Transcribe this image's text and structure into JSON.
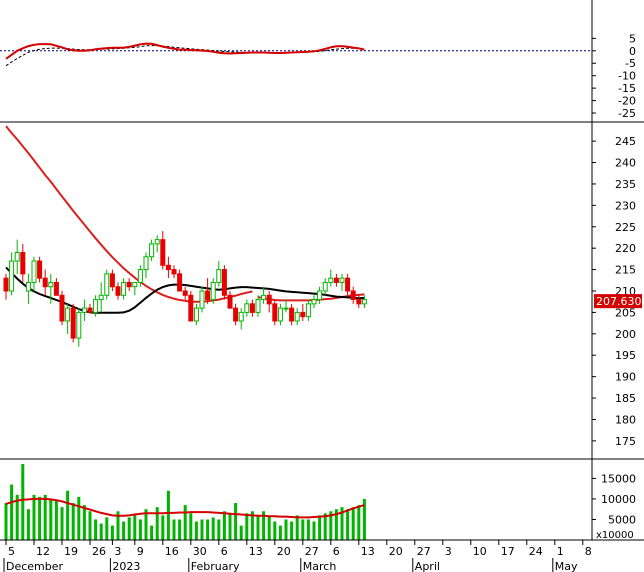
{
  "colors": {
    "background": "#ffffff",
    "panel_border": "#000000",
    "grid": "#ffffff",
    "osc_line": "#d40000",
    "osc_signal": "#000000",
    "zero_line": "#000080",
    "bull_fill": "#00b400",
    "bear_fill": "#e60000",
    "ma_red": "#dc1e1e",
    "ma_black": "#000000",
    "volume_bar": "#00b400",
    "volume_ma": "#d40000",
    "price_tag_bg": "#d40000",
    "price_tag_text": "#ffffff"
  },
  "chart_data": [
    {
      "type": "line",
      "panel": "oscillator",
      "ylim": [
        -27,
        18
      ],
      "yticks": [
        "5",
        "0",
        "-5",
        "-10",
        "-15",
        "-20",
        "-25"
      ],
      "ytick_values": [
        5,
        0,
        -5,
        -10,
        -15,
        -20,
        -25
      ],
      "series": [
        {
          "values": [
            -3.2,
            -1.6,
            0.0,
            1.0,
            1.9,
            2.4,
            2.7,
            2.7,
            2.6,
            2.0,
            1.4,
            0.6,
            0.2,
            0.0,
            0.0,
            0.2,
            0.6,
            0.9,
            1.1,
            1.2,
            1.2,
            1.3,
            1.6,
            2.1,
            2.6,
            2.9,
            2.8,
            2.3,
            1.7,
            1.2,
            0.8,
            0.5,
            0.4,
            0.3,
            0.2,
            0.1,
            -0.1,
            -0.4,
            -0.8,
            -1.0,
            -1.1,
            -1.0,
            -0.9,
            -0.8,
            -0.7,
            -0.7,
            -0.7,
            -0.8,
            -0.9,
            -0.9,
            -0.8,
            -0.7,
            -0.6,
            -0.5,
            -0.4,
            -0.2,
            0.2,
            0.8,
            1.4,
            1.8,
            1.9,
            1.6,
            1.3,
            1.0,
            0.5
          ]
        },
        {
          "values": [
            -6.0,
            -4.5,
            -3.1,
            -1.8,
            -0.6,
            0.1,
            0.6,
            0.9,
            1.1,
            1.1,
            1.0,
            0.9,
            0.7,
            0.5,
            0.4,
            0.4,
            0.5,
            0.6,
            0.7,
            0.8,
            0.9,
            1.0,
            1.2,
            1.4,
            1.7,
            2.0,
            2.1,
            2.1,
            1.9,
            1.7,
            1.4,
            1.2,
            1.0,
            0.8,
            0.6,
            0.5,
            0.3,
            0.1,
            -0.1,
            -0.3,
            -0.4,
            -0.5,
            -0.6,
            -0.7,
            -0.7,
            -0.7,
            -0.7,
            -0.7,
            -0.8,
            -0.8,
            -0.8,
            -0.7,
            -0.7,
            -0.6,
            -0.5,
            -0.4,
            -0.2,
            0.1,
            0.4,
            0.7,
            0.9,
            1.0,
            1.0,
            0.9,
            0.7
          ]
        }
      ]
    },
    {
      "type": "candlestick",
      "panel": "price",
      "ylim": [
        171,
        249
      ],
      "yticks": [
        "245",
        "240",
        "235",
        "230",
        "225",
        "220",
        "215",
        "210",
        "205",
        "200",
        "195",
        "190",
        "185",
        "180",
        "175"
      ],
      "ytick_values": [
        245,
        240,
        235,
        230,
        225,
        220,
        215,
        210,
        205,
        200,
        195,
        190,
        185,
        180,
        175
      ],
      "last_price_label": "207.6300",
      "last_price": 207.63,
      "candles": [
        [
          213,
          214,
          208,
          210
        ],
        [
          210,
          219,
          209,
          217
        ],
        [
          217,
          222,
          214,
          219
        ],
        [
          219,
          221,
          212,
          214
        ],
        [
          210,
          214,
          207,
          212
        ],
        [
          212,
          218,
          210,
          217
        ],
        [
          217,
          218,
          212,
          213
        ],
        [
          213,
          215,
          209,
          211
        ],
        [
          211,
          214,
          207,
          212
        ],
        [
          212,
          213,
          209,
          209
        ],
        [
          209,
          210,
          202,
          203
        ],
        [
          203,
          207,
          200,
          206
        ],
        [
          206,
          207,
          198,
          199
        ],
        [
          199,
          206,
          197,
          205
        ],
        [
          205,
          208,
          203,
          206
        ],
        [
          206,
          207,
          205,
          205
        ],
        [
          205,
          209,
          204,
          208
        ],
        [
          208,
          212,
          205,
          209
        ],
        [
          209,
          215,
          208,
          214
        ],
        [
          214,
          215,
          210,
          211
        ],
        [
          211,
          212,
          208,
          209
        ],
        [
          209,
          213,
          208,
          212
        ],
        [
          212,
          213,
          210,
          211
        ],
        [
          211,
          212,
          209,
          212
        ],
        [
          212,
          216,
          211,
          215
        ],
        [
          215,
          219,
          213,
          218
        ],
        [
          218,
          222,
          217,
          221
        ],
        [
          221,
          223,
          219,
          222
        ],
        [
          222,
          224,
          215,
          216
        ],
        [
          216,
          218,
          213,
          215
        ],
        [
          215,
          216,
          213,
          214
        ],
        [
          214,
          215,
          210,
          210
        ],
        [
          210,
          211,
          208,
          209
        ],
        [
          209,
          210,
          203,
          203
        ],
        [
          203,
          207,
          202,
          206
        ],
        [
          206,
          211,
          205,
          210
        ],
        [
          210,
          213,
          207,
          208
        ],
        [
          208,
          213,
          207,
          212
        ],
        [
          212,
          217,
          211,
          215
        ],
        [
          215,
          216,
          208,
          209
        ],
        [
          209,
          210,
          206,
          206
        ],
        [
          206,
          207,
          202,
          203
        ],
        [
          203,
          206,
          201,
          205
        ],
        [
          205,
          208,
          204,
          207
        ],
        [
          207,
          208,
          204,
          205
        ],
        [
          205,
          209,
          204,
          208
        ],
        [
          208,
          211,
          207,
          209
        ],
        [
          209,
          210,
          205,
          207
        ],
        [
          207,
          208,
          202,
          203
        ],
        [
          203,
          207,
          202,
          206
        ],
        [
          206,
          208,
          205,
          206
        ],
        [
          206,
          207,
          202,
          203
        ],
        [
          203,
          206,
          202,
          205
        ],
        [
          205,
          207,
          203,
          204
        ],
        [
          204,
          208,
          203,
          207
        ],
        [
          207,
          209,
          206,
          208
        ],
        [
          208,
          211,
          207,
          210
        ],
        [
          210,
          213,
          209,
          212
        ],
        [
          212,
          215,
          211,
          213
        ],
        [
          213,
          214,
          211,
          212
        ],
        [
          212,
          214,
          210,
          213
        ],
        [
          213,
          214,
          209,
          210
        ],
        [
          210,
          211,
          207,
          208
        ],
        [
          208,
          209,
          206,
          207
        ],
        [
          207,
          209,
          206,
          208
        ]
      ],
      "ma_long": [
        248.5,
        246.9,
        245.4,
        243.8,
        242.2,
        240.5,
        238.8,
        237.1,
        235.5,
        233.8,
        232.1,
        230.4,
        228.7,
        227.1,
        225.5,
        223.9,
        222.3,
        220.8,
        219.3,
        217.9,
        216.6,
        215.3,
        214.2,
        213.1,
        212.1,
        211.2,
        210.4,
        209.7,
        209.1,
        208.6,
        208.2,
        207.9,
        207.7,
        207.5,
        207.5,
        207.5,
        207.6,
        207.8,
        208.0,
        208.3,
        208.6,
        208.9,
        209.3,
        209.6,
        209.9
      ],
      "ma_long_start": 0,
      "ma_red_tail": [
        208.6,
        208.3,
        208.1,
        207.9,
        207.8,
        207.8,
        207.8,
        207.8,
        207.8,
        207.8,
        207.9,
        208.0,
        208.1,
        208.2,
        208.4,
        208.6,
        208.8,
        209.0,
        209.1,
        209.2
      ],
      "ma_black": [
        215.5,
        214.2,
        212.9,
        211.7,
        210.7,
        209.9,
        209.3,
        208.8,
        208.4,
        207.9,
        207.4,
        206.9,
        206.3,
        205.8,
        205.3,
        205.0,
        204.9,
        204.9,
        204.9,
        204.9,
        204.9,
        205.0,
        205.4,
        206.2,
        207.3,
        208.4,
        209.4,
        210.3,
        210.9,
        211.3,
        211.5,
        211.5,
        211.4,
        211.2,
        211.0,
        210.8,
        210.6,
        210.4,
        210.3,
        210.4,
        210.6,
        210.8,
        210.9,
        210.9,
        210.8,
        210.7,
        210.6,
        210.5,
        210.3,
        210.1,
        209.9,
        209.8,
        209.7,
        209.6,
        209.5,
        209.4,
        209.3,
        209.1,
        208.9,
        208.7,
        208.6,
        208.5,
        208.4,
        208.3,
        208.4
      ]
    },
    {
      "type": "bar",
      "panel": "volume",
      "ylim": [
        0,
        19000
      ],
      "yticks": [
        "15000",
        "10000",
        "5000"
      ],
      "ytick_values": [
        15000,
        10000,
        5000
      ],
      "unit_label": "x10000",
      "values": [
        9000,
        13500,
        11000,
        18500,
        7500,
        11000,
        10500,
        11000,
        10000,
        9500,
        8000,
        12000,
        9000,
        10500,
        8500,
        7000,
        5000,
        4000,
        5500,
        3500,
        7000,
        4500,
        5500,
        6000,
        5000,
        7500,
        3500,
        8000,
        6000,
        12000,
        5000,
        5000,
        8500,
        6500,
        4500,
        5000,
        5000,
        5500,
        5000,
        7000,
        6500,
        9000,
        3500,
        6500,
        7000,
        6000,
        7000,
        6000,
        4500,
        3500,
        5000,
        4500,
        6000,
        5000,
        5000,
        4500,
        6000,
        6500,
        7000,
        7500,
        8000,
        7500,
        8000,
        8500,
        10000
      ],
      "ma": [
        8800,
        9200,
        9600,
        9800,
        9900,
        10000,
        10000,
        10000,
        9900,
        9700,
        9400,
        9000,
        8600,
        8200,
        7800,
        7400,
        7000,
        6600,
        6300,
        6000,
        5900,
        5900,
        6000,
        6200,
        6400,
        6500,
        6500,
        6500,
        6500,
        6600,
        6600,
        6700,
        6700,
        6800,
        6800,
        6800,
        6800,
        6700,
        6600,
        6500,
        6400,
        6300,
        6200,
        6100,
        6000,
        5900,
        5900,
        5800,
        5800,
        5700,
        5700,
        5600,
        5500,
        5500,
        5500,
        5600,
        5700,
        5800,
        6000,
        6300,
        6700,
        7200,
        7700,
        8100,
        8500
      ]
    }
  ],
  "x_axis": {
    "date_labels": [
      "5",
      "12",
      "19",
      "26",
      "3",
      "9",
      "16",
      "30",
      "6",
      "13",
      "20",
      "27",
      "6",
      "13",
      "20",
      "27",
      "3",
      "10",
      "17",
      "24",
      "1",
      "8"
    ],
    "date_label_bars": [
      0,
      5,
      10,
      15,
      19,
      23,
      28,
      33,
      38,
      43,
      48,
      53,
      58,
      63,
      68,
      73,
      78,
      83,
      88,
      93,
      98,
      103
    ],
    "month_labels": [
      "December",
      "2023",
      "February",
      "March",
      "April",
      "May"
    ],
    "month_label_bars": [
      0,
      19,
      33,
      53,
      73,
      98
    ]
  }
}
